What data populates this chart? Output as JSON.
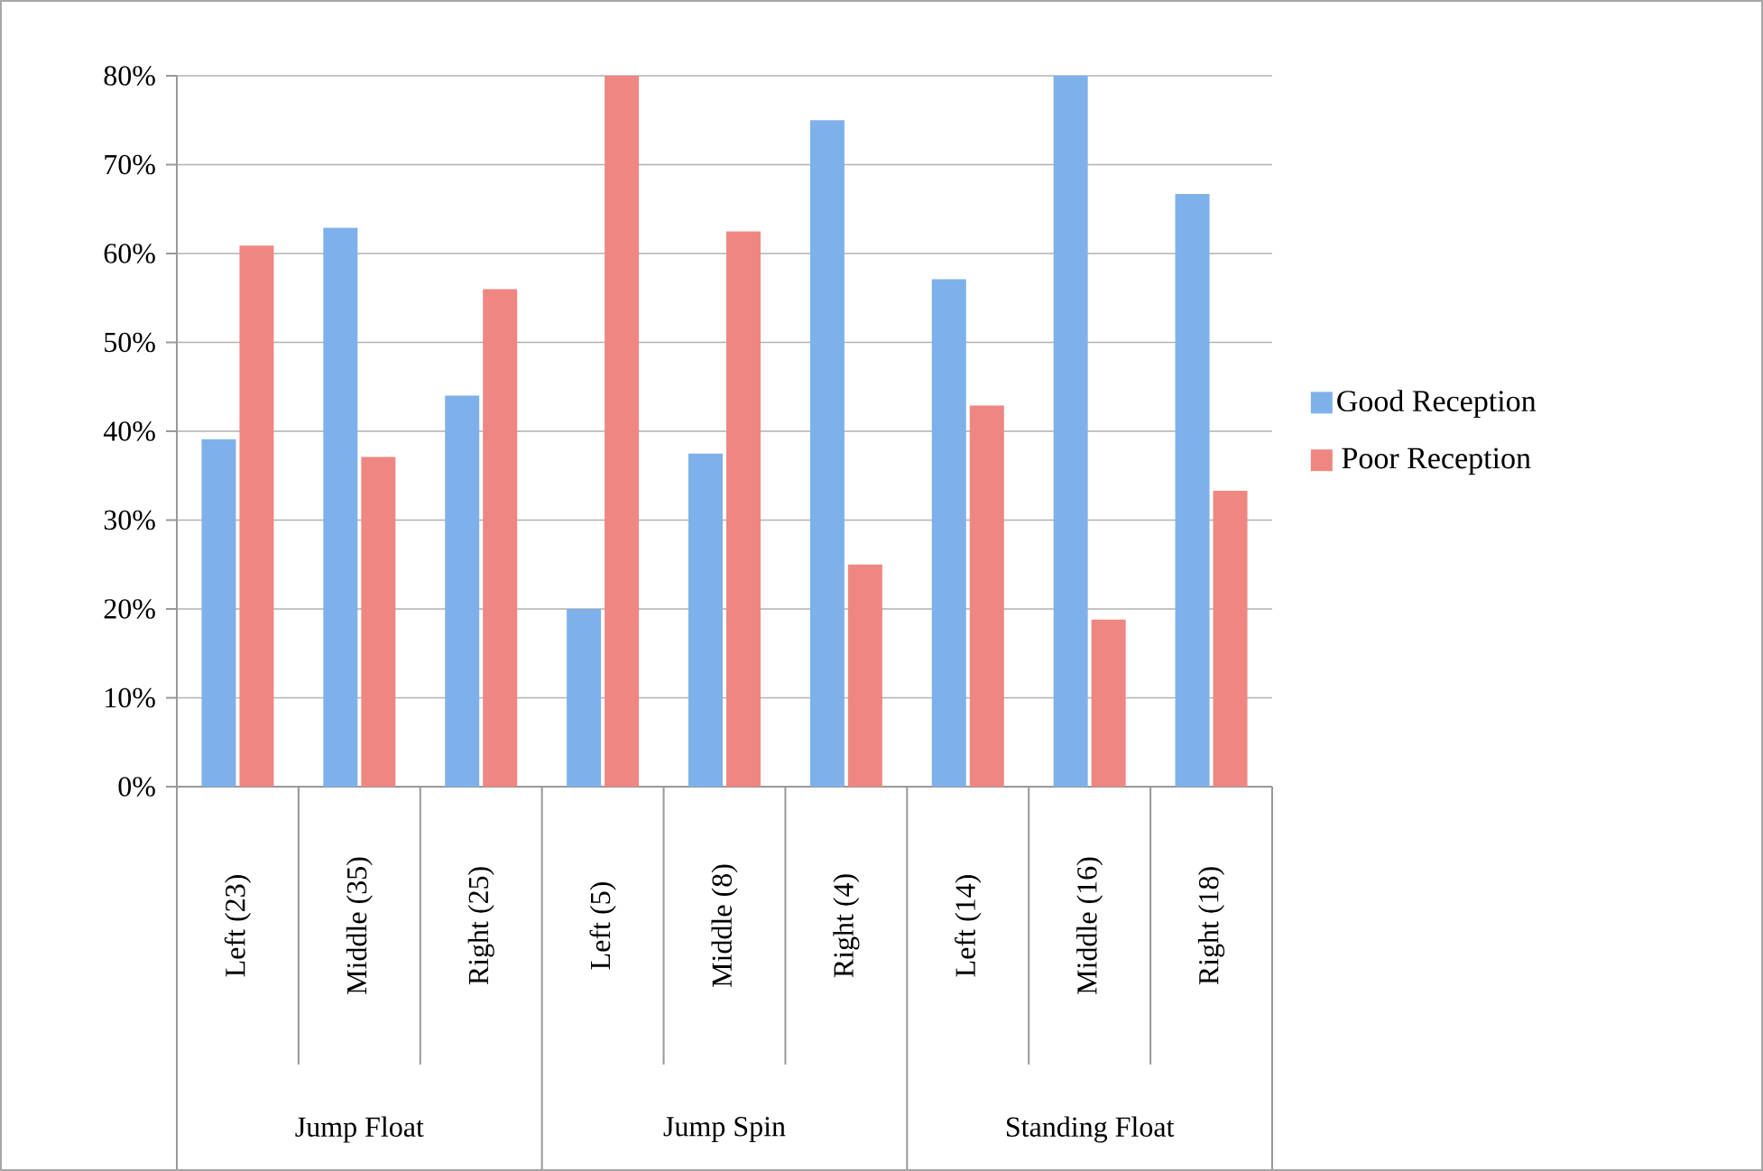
{
  "chart_data": {
    "type": "bar",
    "categories": [
      "Left (23)",
      "Middle (35)",
      "Right (25)",
      "Left (5)",
      "Middle (8)",
      "Right (4)",
      "Left (14)",
      "Middle (16)",
      "Right (18)"
    ],
    "series": [
      {
        "name": "Good Reception",
        "color": "#7eb1ea",
        "values": [
          39.1,
          62.9,
          44,
          20,
          37.5,
          75,
          57.1,
          80,
          66.7
        ]
      },
      {
        "name": "Poor Reception",
        "color": "#ee8782",
        "values": [
          60.9,
          37.1,
          56,
          80,
          62.5,
          25,
          42.9,
          18.8,
          33.3
        ]
      }
    ],
    "ylim": [
      0,
      80
    ],
    "yticks": [
      {
        "value": 0,
        "label": "0%"
      },
      {
        "value": 10,
        "label": "10%"
      },
      {
        "value": 20,
        "label": "20%"
      },
      {
        "value": 30,
        "label": "30%"
      },
      {
        "value": 40,
        "label": "40%"
      },
      {
        "value": 50,
        "label": "50%"
      },
      {
        "value": 60,
        "label": "60%"
      },
      {
        "value": 70,
        "label": "70%"
      },
      {
        "value": 80,
        "label": "80%"
      }
    ],
    "grid": "y",
    "legend": "right",
    "annotations": [
      "Jump Float",
      "Jump Spin",
      "Standing Float"
    ]
  }
}
